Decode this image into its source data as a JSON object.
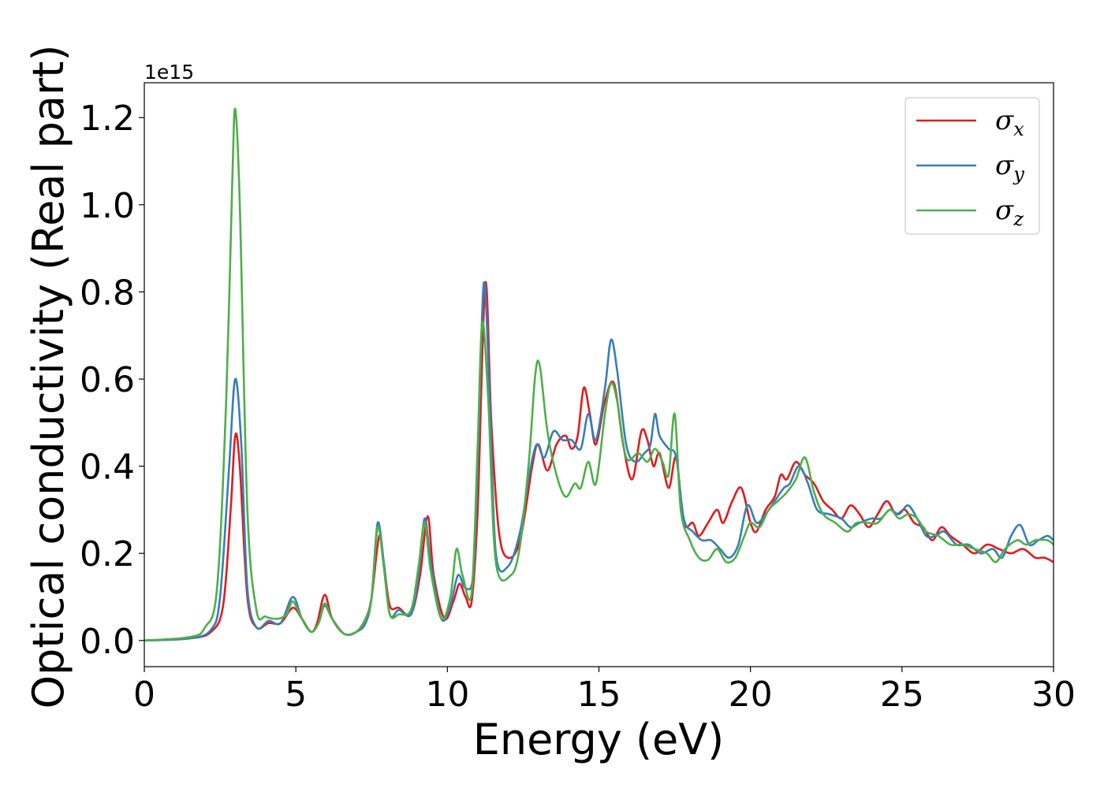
{
  "chart_data": {
    "type": "line",
    "xlabel": "Energy (eV)",
    "ylabel": "Optical conductivity (Real part)",
    "y_offset_text": "1e15",
    "y_scale": 1000000000000000.0,
    "xlim": [
      0,
      30
    ],
    "ylim": [
      -0.06,
      1.28
    ],
    "x_ticks": [
      0,
      5,
      10,
      15,
      20,
      25,
      30
    ],
    "y_ticks": [
      0.0,
      0.2,
      0.4,
      0.6,
      0.8,
      1.0,
      1.2
    ],
    "y_tick_labels": [
      "0.0",
      "0.2",
      "0.4",
      "0.6",
      "0.8",
      "1.0",
      "1.2"
    ],
    "grid": false,
    "legend_position": "top-right",
    "series": [
      {
        "name": "σ",
        "subscript": "x",
        "color": "#e41a1c",
        "points": [
          [
            0,
            0
          ],
          [
            1.5,
            0.005
          ],
          [
            2.2,
            0.02
          ],
          [
            2.6,
            0.08
          ],
          [
            2.85,
            0.3
          ],
          [
            3.0,
            0.47
          ],
          [
            3.15,
            0.4
          ],
          [
            3.4,
            0.1
          ],
          [
            3.7,
            0.03
          ],
          [
            4.1,
            0.04
          ],
          [
            4.5,
            0.04
          ],
          [
            4.9,
            0.075
          ],
          [
            5.2,
            0.05
          ],
          [
            5.5,
            0.02
          ],
          [
            5.7,
            0.04
          ],
          [
            5.95,
            0.105
          ],
          [
            6.2,
            0.05
          ],
          [
            6.6,
            0.015
          ],
          [
            7.0,
            0.02
          ],
          [
            7.3,
            0.05
          ],
          [
            7.5,
            0.1
          ],
          [
            7.75,
            0.24
          ],
          [
            7.9,
            0.18
          ],
          [
            8.1,
            0.08
          ],
          [
            8.4,
            0.075
          ],
          [
            8.8,
            0.06
          ],
          [
            9.1,
            0.15
          ],
          [
            9.35,
            0.285
          ],
          [
            9.55,
            0.15
          ],
          [
            9.9,
            0.05
          ],
          [
            10.2,
            0.09
          ],
          [
            10.4,
            0.13
          ],
          [
            10.6,
            0.1
          ],
          [
            10.8,
            0.09
          ],
          [
            11.0,
            0.3
          ],
          [
            11.25,
            0.82
          ],
          [
            11.45,
            0.5
          ],
          [
            11.7,
            0.25
          ],
          [
            12.0,
            0.19
          ],
          [
            12.4,
            0.23
          ],
          [
            12.8,
            0.4
          ],
          [
            13.0,
            0.45
          ],
          [
            13.3,
            0.39
          ],
          [
            13.6,
            0.45
          ],
          [
            13.9,
            0.47
          ],
          [
            14.1,
            0.44
          ],
          [
            14.3,
            0.47
          ],
          [
            14.5,
            0.58
          ],
          [
            14.7,
            0.52
          ],
          [
            14.9,
            0.45
          ],
          [
            15.2,
            0.55
          ],
          [
            15.5,
            0.59
          ],
          [
            15.8,
            0.45
          ],
          [
            16.1,
            0.37
          ],
          [
            16.4,
            0.48
          ],
          [
            16.6,
            0.46
          ],
          [
            16.8,
            0.4
          ],
          [
            17.0,
            0.43
          ],
          [
            17.3,
            0.35
          ],
          [
            17.55,
            0.42
          ],
          [
            17.8,
            0.27
          ],
          [
            18.1,
            0.27
          ],
          [
            18.3,
            0.24
          ],
          [
            18.6,
            0.27
          ],
          [
            18.9,
            0.3
          ],
          [
            19.1,
            0.27
          ],
          [
            19.4,
            0.32
          ],
          [
            19.7,
            0.35
          ],
          [
            20.0,
            0.27
          ],
          [
            20.2,
            0.25
          ],
          [
            20.5,
            0.3
          ],
          [
            20.8,
            0.33
          ],
          [
            21.0,
            0.38
          ],
          [
            21.2,
            0.37
          ],
          [
            21.5,
            0.41
          ],
          [
            21.8,
            0.38
          ],
          [
            22.1,
            0.36
          ],
          [
            22.4,
            0.32
          ],
          [
            22.7,
            0.3
          ],
          [
            23.0,
            0.28
          ],
          [
            23.3,
            0.31
          ],
          [
            23.6,
            0.29
          ],
          [
            23.9,
            0.26
          ],
          [
            24.2,
            0.29
          ],
          [
            24.5,
            0.32
          ],
          [
            24.8,
            0.29
          ],
          [
            25.1,
            0.3
          ],
          [
            25.4,
            0.27
          ],
          [
            25.7,
            0.26
          ],
          [
            26.0,
            0.23
          ],
          [
            26.3,
            0.26
          ],
          [
            26.6,
            0.24
          ],
          [
            27.0,
            0.22
          ],
          [
            27.4,
            0.2
          ],
          [
            27.8,
            0.22
          ],
          [
            28.2,
            0.21
          ],
          [
            28.6,
            0.2
          ],
          [
            29.0,
            0.21
          ],
          [
            29.4,
            0.19
          ],
          [
            29.7,
            0.19
          ],
          [
            30.0,
            0.18
          ]
        ]
      },
      {
        "name": "σ",
        "subscript": "y",
        "color": "#377eb8",
        "points": [
          [
            0,
            0
          ],
          [
            1.5,
            0.005
          ],
          [
            2.2,
            0.025
          ],
          [
            2.5,
            0.1
          ],
          [
            2.8,
            0.4
          ],
          [
            3.0,
            0.6
          ],
          [
            3.2,
            0.45
          ],
          [
            3.4,
            0.12
          ],
          [
            3.7,
            0.03
          ],
          [
            4.1,
            0.045
          ],
          [
            4.5,
            0.04
          ],
          [
            4.9,
            0.1
          ],
          [
            5.2,
            0.05
          ],
          [
            5.5,
            0.02
          ],
          [
            5.75,
            0.04
          ],
          [
            5.95,
            0.08
          ],
          [
            6.2,
            0.05
          ],
          [
            6.6,
            0.015
          ],
          [
            7.0,
            0.02
          ],
          [
            7.3,
            0.04
          ],
          [
            7.5,
            0.1
          ],
          [
            7.7,
            0.27
          ],
          [
            7.9,
            0.18
          ],
          [
            8.1,
            0.06
          ],
          [
            8.4,
            0.07
          ],
          [
            8.8,
            0.06
          ],
          [
            9.05,
            0.15
          ],
          [
            9.25,
            0.28
          ],
          [
            9.45,
            0.18
          ],
          [
            9.8,
            0.05
          ],
          [
            10.1,
            0.08
          ],
          [
            10.35,
            0.15
          ],
          [
            10.6,
            0.12
          ],
          [
            10.85,
            0.15
          ],
          [
            11.0,
            0.4
          ],
          [
            11.2,
            0.82
          ],
          [
            11.4,
            0.55
          ],
          [
            11.6,
            0.2
          ],
          [
            12.0,
            0.17
          ],
          [
            12.4,
            0.25
          ],
          [
            12.7,
            0.38
          ],
          [
            12.95,
            0.45
          ],
          [
            13.2,
            0.42
          ],
          [
            13.5,
            0.48
          ],
          [
            13.8,
            0.46
          ],
          [
            14.1,
            0.46
          ],
          [
            14.4,
            0.44
          ],
          [
            14.65,
            0.52
          ],
          [
            14.9,
            0.46
          ],
          [
            15.2,
            0.58
          ],
          [
            15.4,
            0.69
          ],
          [
            15.6,
            0.62
          ],
          [
            15.9,
            0.45
          ],
          [
            16.2,
            0.41
          ],
          [
            16.5,
            0.43
          ],
          [
            16.7,
            0.45
          ],
          [
            16.85,
            0.52
          ],
          [
            17.0,
            0.47
          ],
          [
            17.3,
            0.44
          ],
          [
            17.55,
            0.42
          ],
          [
            17.8,
            0.28
          ],
          [
            18.1,
            0.25
          ],
          [
            18.4,
            0.23
          ],
          [
            18.7,
            0.23
          ],
          [
            19.0,
            0.21
          ],
          [
            19.3,
            0.19
          ],
          [
            19.6,
            0.22
          ],
          [
            19.9,
            0.31
          ],
          [
            20.2,
            0.27
          ],
          [
            20.5,
            0.29
          ],
          [
            20.8,
            0.32
          ],
          [
            21.1,
            0.35
          ],
          [
            21.3,
            0.36
          ],
          [
            21.6,
            0.4
          ],
          [
            21.9,
            0.36
          ],
          [
            22.2,
            0.3
          ],
          [
            22.6,
            0.29
          ],
          [
            23.0,
            0.28
          ],
          [
            23.3,
            0.26
          ],
          [
            23.6,
            0.27
          ],
          [
            24.0,
            0.28
          ],
          [
            24.3,
            0.28
          ],
          [
            24.6,
            0.3
          ],
          [
            24.9,
            0.29
          ],
          [
            25.2,
            0.31
          ],
          [
            25.5,
            0.28
          ],
          [
            25.8,
            0.24
          ],
          [
            26.1,
            0.24
          ],
          [
            26.4,
            0.25
          ],
          [
            26.8,
            0.22
          ],
          [
            27.2,
            0.22
          ],
          [
            27.6,
            0.2
          ],
          [
            28.0,
            0.21
          ],
          [
            28.3,
            0.19
          ],
          [
            28.6,
            0.24
          ],
          [
            28.9,
            0.265
          ],
          [
            29.2,
            0.22
          ],
          [
            29.5,
            0.23
          ],
          [
            29.8,
            0.24
          ],
          [
            30.0,
            0.23
          ]
        ]
      },
      {
        "name": "σ",
        "subscript": "z",
        "color": "#4daf4a",
        "points": [
          [
            0,
            0
          ],
          [
            1.5,
            0.008
          ],
          [
            2.0,
            0.03
          ],
          [
            2.4,
            0.12
          ],
          [
            2.7,
            0.55
          ],
          [
            2.9,
            1.05
          ],
          [
            3.0,
            1.22
          ],
          [
            3.15,
            1.0
          ],
          [
            3.4,
            0.3
          ],
          [
            3.7,
            0.07
          ],
          [
            4.0,
            0.055
          ],
          [
            4.4,
            0.05
          ],
          [
            4.7,
            0.06
          ],
          [
            4.9,
            0.09
          ],
          [
            5.2,
            0.05
          ],
          [
            5.5,
            0.02
          ],
          [
            5.75,
            0.04
          ],
          [
            5.95,
            0.085
          ],
          [
            6.2,
            0.05
          ],
          [
            6.6,
            0.015
          ],
          [
            7.0,
            0.02
          ],
          [
            7.3,
            0.05
          ],
          [
            7.5,
            0.1
          ],
          [
            7.7,
            0.26
          ],
          [
            7.9,
            0.17
          ],
          [
            8.1,
            0.06
          ],
          [
            8.4,
            0.06
          ],
          [
            8.8,
            0.07
          ],
          [
            9.05,
            0.17
          ],
          [
            9.25,
            0.27
          ],
          [
            9.45,
            0.16
          ],
          [
            9.8,
            0.05
          ],
          [
            10.1,
            0.1
          ],
          [
            10.3,
            0.21
          ],
          [
            10.5,
            0.15
          ],
          [
            10.8,
            0.11
          ],
          [
            11.0,
            0.45
          ],
          [
            11.15,
            0.73
          ],
          [
            11.35,
            0.55
          ],
          [
            11.6,
            0.18
          ],
          [
            12.1,
            0.15
          ],
          [
            12.4,
            0.22
          ],
          [
            12.7,
            0.42
          ],
          [
            12.9,
            0.61
          ],
          [
            13.05,
            0.63
          ],
          [
            13.3,
            0.48
          ],
          [
            13.6,
            0.38
          ],
          [
            13.9,
            0.33
          ],
          [
            14.2,
            0.36
          ],
          [
            14.4,
            0.35
          ],
          [
            14.65,
            0.41
          ],
          [
            14.9,
            0.36
          ],
          [
            15.2,
            0.52
          ],
          [
            15.4,
            0.59
          ],
          [
            15.6,
            0.55
          ],
          [
            15.9,
            0.42
          ],
          [
            16.3,
            0.43
          ],
          [
            16.6,
            0.41
          ],
          [
            16.85,
            0.44
          ],
          [
            17.1,
            0.41
          ],
          [
            17.3,
            0.38
          ],
          [
            17.5,
            0.52
          ],
          [
            17.7,
            0.3
          ],
          [
            18.0,
            0.23
          ],
          [
            18.3,
            0.19
          ],
          [
            18.6,
            0.185
          ],
          [
            18.9,
            0.21
          ],
          [
            19.2,
            0.18
          ],
          [
            19.5,
            0.19
          ],
          [
            19.8,
            0.24
          ],
          [
            20.0,
            0.27
          ],
          [
            20.3,
            0.26
          ],
          [
            20.6,
            0.3
          ],
          [
            20.9,
            0.32
          ],
          [
            21.2,
            0.34
          ],
          [
            21.5,
            0.37
          ],
          [
            21.8,
            0.42
          ],
          [
            22.1,
            0.34
          ],
          [
            22.4,
            0.29
          ],
          [
            22.8,
            0.27
          ],
          [
            23.2,
            0.25
          ],
          [
            23.5,
            0.27
          ],
          [
            23.9,
            0.27
          ],
          [
            24.2,
            0.27
          ],
          [
            24.6,
            0.3
          ],
          [
            24.9,
            0.28
          ],
          [
            25.2,
            0.29
          ],
          [
            25.5,
            0.28
          ],
          [
            25.8,
            0.25
          ],
          [
            26.2,
            0.24
          ],
          [
            26.6,
            0.22
          ],
          [
            27.0,
            0.22
          ],
          [
            27.4,
            0.21
          ],
          [
            27.8,
            0.2
          ],
          [
            28.1,
            0.18
          ],
          [
            28.4,
            0.21
          ],
          [
            28.8,
            0.23
          ],
          [
            29.1,
            0.22
          ],
          [
            29.4,
            0.23
          ],
          [
            29.8,
            0.23
          ],
          [
            30.0,
            0.22
          ]
        ]
      }
    ]
  }
}
